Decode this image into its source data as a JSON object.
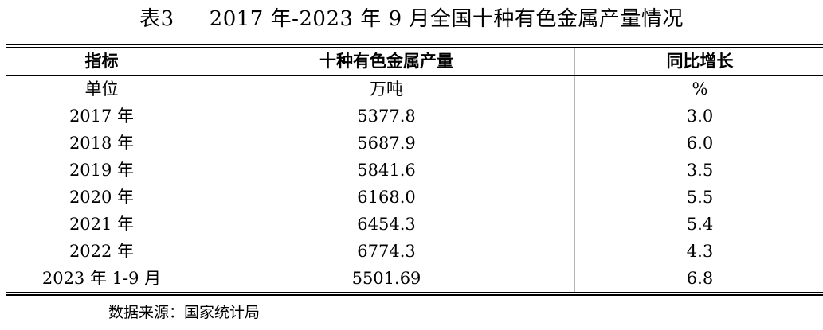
{
  "title": {
    "label": "表3",
    "text": "2017 年-2023 年 9 月全国十种有色金属产量情况"
  },
  "table": {
    "headers": [
      "指标",
      "十种有色金属产量",
      "同比增长"
    ],
    "units": [
      "单位",
      "万吨",
      "%"
    ],
    "rows": [
      {
        "period": "2017 年",
        "output": "5377.8",
        "growth": "3.0"
      },
      {
        "period": "2018 年",
        "output": "5687.9",
        "growth": "6.0"
      },
      {
        "period": "2019 年",
        "output": "5841.6",
        "growth": "3.5"
      },
      {
        "period": "2020 年",
        "output": "6168.0",
        "growth": "5.5"
      },
      {
        "period": "2021 年",
        "output": "6454.3",
        "growth": "5.4"
      },
      {
        "period": "2022 年",
        "output": "6774.3",
        "growth": "4.3"
      },
      {
        "period": "2023 年 1-9 月",
        "output": "5501.69",
        "growth": "6.8"
      }
    ]
  },
  "source": "数据来源：国家统计局"
}
